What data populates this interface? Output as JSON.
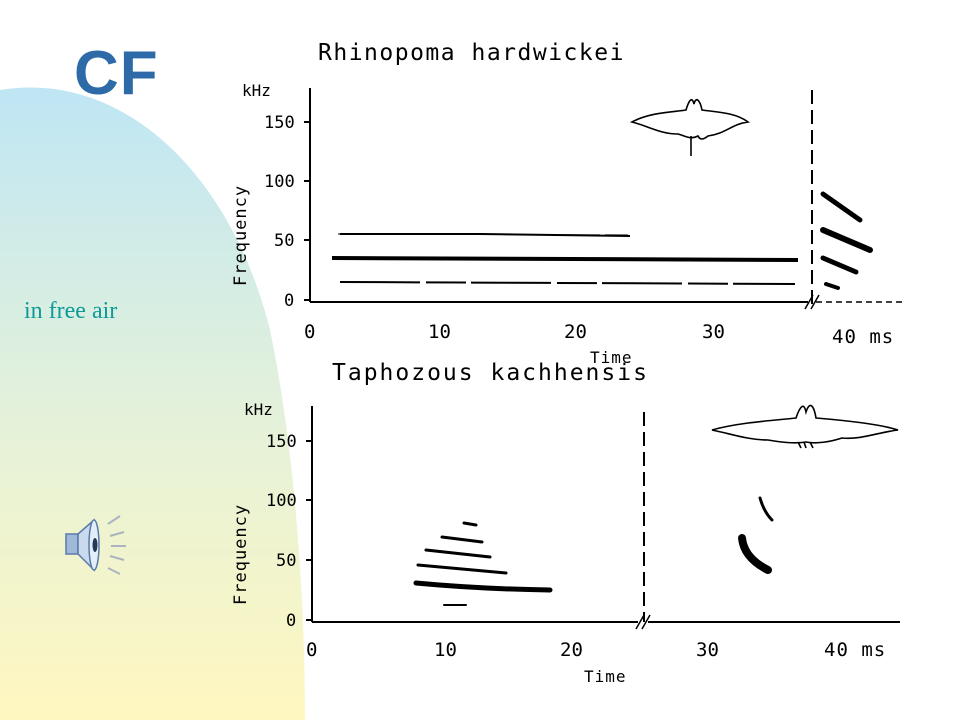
{
  "slide": {
    "title": "CF",
    "subtitle": "in free air"
  },
  "colors": {
    "title": "#2e6aa8",
    "subtitle": "#0e9a96",
    "blob_top": "#bfe6f4",
    "blob_bottom": "#fff7c0"
  },
  "icons": {
    "speaker": "speaker-sound-icon"
  },
  "figure": {
    "top_panel": {
      "title": "Rhinopoma hardwickei",
      "y_unit": "kHz",
      "y_label": "Frequency",
      "y_ticks": [
        "150",
        "100",
        "50",
        "0"
      ],
      "x_ticks": [
        "0",
        "10",
        "20",
        "30",
        "40 ms"
      ],
      "x_label": "Time"
    },
    "bottom_panel": {
      "title": "Taphozous kachhensis",
      "y_unit": "kHz",
      "y_label": "Frequency",
      "y_ticks": [
        "150",
        "100",
        "50",
        "0"
      ],
      "x_ticks": [
        "0",
        "10",
        "20",
        "30",
        "40 ms"
      ],
      "x_label": "Time"
    }
  }
}
